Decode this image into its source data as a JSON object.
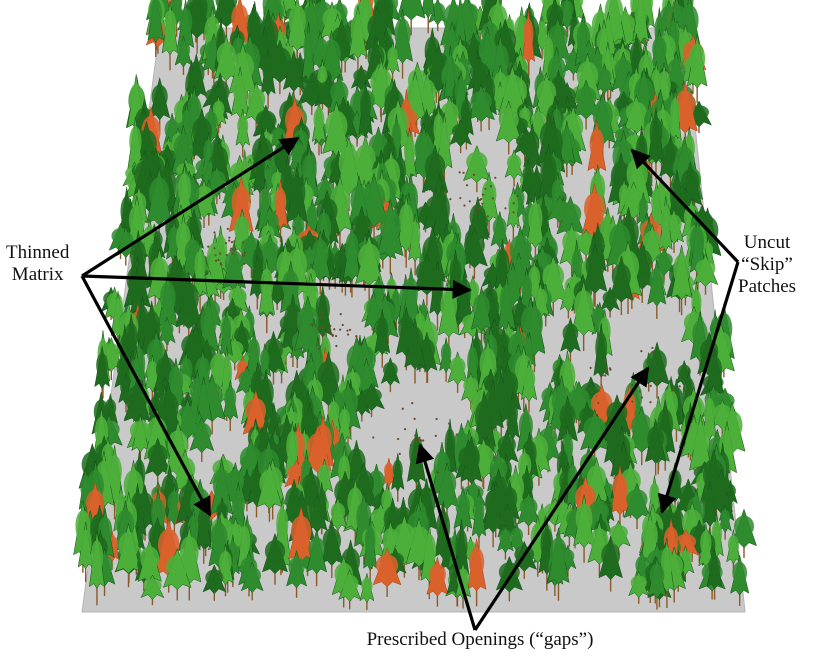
{
  "labels": {
    "thinned_matrix": {
      "line1": "Thinned",
      "line2": "Matrix"
    },
    "uncut_skip_patches": {
      "line1": "Uncut",
      "line2": "“Skip”",
      "line2_raw": "“Skip”",
      "line3": "Patches"
    },
    "prescribed_openings": "Prescribed Openings (“gaps”)"
  },
  "colors": {
    "ground": "#c9c9c9",
    "ground_edge": "#b4b4b4",
    "canopy_dark": "#1f6b1f",
    "canopy_mid": "#2e8b2e",
    "canopy_light": "#4caf3a",
    "trunk": "#8a5a2b",
    "dead_tree": "#d9622b",
    "arrow": "#000000"
  }
}
